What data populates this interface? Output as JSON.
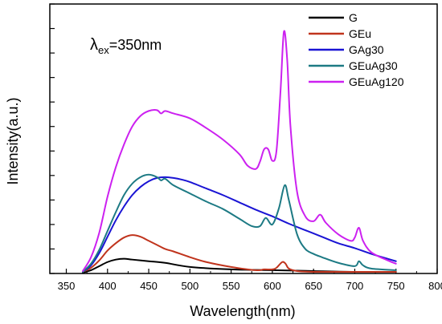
{
  "chart_data": {
    "type": "line",
    "title": "",
    "xlabel": "Wavelength(nm)",
    "ylabel": "Intensity(a.u.)",
    "xlim": [
      330,
      800
    ],
    "ylim": [
      0,
      330
    ],
    "x_ticks": [
      350,
      400,
      450,
      500,
      550,
      600,
      650,
      700,
      750,
      800
    ],
    "y_ticks_labeled": false,
    "annotation": {
      "lambda": "λ",
      "sub": "ex",
      "rest": "=350nm"
    },
    "grid": false,
    "legend_position": "top-right",
    "series": [
      {
        "name": "G",
        "color": "#000000",
        "points": [
          [
            370,
            1
          ],
          [
            380,
            4
          ],
          [
            390,
            9
          ],
          [
            400,
            14
          ],
          [
            410,
            17
          ],
          [
            420,
            18
          ],
          [
            430,
            17
          ],
          [
            450,
            15
          ],
          [
            470,
            13
          ],
          [
            500,
            8
          ],
          [
            550,
            5
          ],
          [
            600,
            4
          ],
          [
            650,
            3
          ],
          [
            700,
            2
          ],
          [
            750,
            2
          ]
        ]
      },
      {
        "name": "GEu",
        "color": "#c0341d",
        "points": [
          [
            370,
            2
          ],
          [
            380,
            7
          ],
          [
            390,
            16
          ],
          [
            400,
            28
          ],
          [
            410,
            37
          ],
          [
            420,
            44
          ],
          [
            430,
            47
          ],
          [
            440,
            45
          ],
          [
            450,
            40
          ],
          [
            460,
            35
          ],
          [
            470,
            30
          ],
          [
            480,
            27
          ],
          [
            500,
            20
          ],
          [
            520,
            14
          ],
          [
            550,
            8
          ],
          [
            580,
            4
          ],
          [
            590,
            5
          ],
          [
            600,
            5
          ],
          [
            605,
            7
          ],
          [
            612,
            14
          ],
          [
            616,
            12
          ],
          [
            620,
            6
          ],
          [
            630,
            3
          ],
          [
            650,
            2
          ],
          [
            700,
            2
          ],
          [
            750,
            2
          ]
        ]
      },
      {
        "name": "GAg30",
        "color": "#1a14d4",
        "points": [
          [
            370,
            2
          ],
          [
            380,
            10
          ],
          [
            390,
            25
          ],
          [
            400,
            45
          ],
          [
            410,
            65
          ],
          [
            420,
            82
          ],
          [
            430,
            96
          ],
          [
            440,
            106
          ],
          [
            450,
            113
          ],
          [
            460,
            117
          ],
          [
            470,
            118
          ],
          [
            480,
            117
          ],
          [
            490,
            115
          ],
          [
            500,
            112
          ],
          [
            520,
            104
          ],
          [
            540,
            96
          ],
          [
            560,
            87
          ],
          [
            580,
            78
          ],
          [
            600,
            70
          ],
          [
            620,
            61
          ],
          [
            640,
            53
          ],
          [
            660,
            45
          ],
          [
            680,
            37
          ],
          [
            700,
            31
          ],
          [
            720,
            24
          ],
          [
            740,
            18
          ],
          [
            750,
            15
          ]
        ]
      },
      {
        "name": "GEuAg30",
        "color": "#1d7a84",
        "points": [
          [
            370,
            2
          ],
          [
            380,
            12
          ],
          [
            390,
            29
          ],
          [
            400,
            52
          ],
          [
            410,
            75
          ],
          [
            420,
            96
          ],
          [
            430,
            110
          ],
          [
            440,
            118
          ],
          [
            450,
            121
          ],
          [
            460,
            118
          ],
          [
            465,
            114
          ],
          [
            470,
            116
          ],
          [
            480,
            108
          ],
          [
            500,
            98
          ],
          [
            520,
            88
          ],
          [
            540,
            79
          ],
          [
            560,
            67
          ],
          [
            575,
            58
          ],
          [
            585,
            58
          ],
          [
            592,
            68
          ],
          [
            600,
            60
          ],
          [
            608,
            80
          ],
          [
            615,
            108
          ],
          [
            620,
            90
          ],
          [
            630,
            48
          ],
          [
            640,
            30
          ],
          [
            650,
            24
          ],
          [
            660,
            20
          ],
          [
            680,
            13
          ],
          [
            700,
            9
          ],
          [
            705,
            15
          ],
          [
            710,
            10
          ],
          [
            720,
            6
          ],
          [
            750,
            4
          ]
        ]
      },
      {
        "name": "GEuAg120",
        "color": "#cc21f0",
        "points": [
          [
            370,
            3
          ],
          [
            380,
            20
          ],
          [
            390,
            50
          ],
          [
            400,
            94
          ],
          [
            410,
            130
          ],
          [
            420,
            158
          ],
          [
            430,
            180
          ],
          [
            440,
            193
          ],
          [
            450,
            199
          ],
          [
            460,
            200
          ],
          [
            465,
            196
          ],
          [
            470,
            199
          ],
          [
            480,
            196
          ],
          [
            500,
            190
          ],
          [
            520,
            178
          ],
          [
            540,
            164
          ],
          [
            560,
            146
          ],
          [
            570,
            132
          ],
          [
            580,
            128
          ],
          [
            585,
            137
          ],
          [
            590,
            152
          ],
          [
            595,
            152
          ],
          [
            600,
            138
          ],
          [
            605,
            150
          ],
          [
            610,
            225
          ],
          [
            614,
            296
          ],
          [
            618,
            262
          ],
          [
            622,
            180
          ],
          [
            630,
            100
          ],
          [
            640,
            70
          ],
          [
            650,
            64
          ],
          [
            658,
            72
          ],
          [
            665,
            62
          ],
          [
            680,
            48
          ],
          [
            695,
            40
          ],
          [
            700,
            44
          ],
          [
            705,
            56
          ],
          [
            710,
            40
          ],
          [
            720,
            26
          ],
          [
            740,
            16
          ],
          [
            750,
            12
          ]
        ]
      }
    ]
  }
}
